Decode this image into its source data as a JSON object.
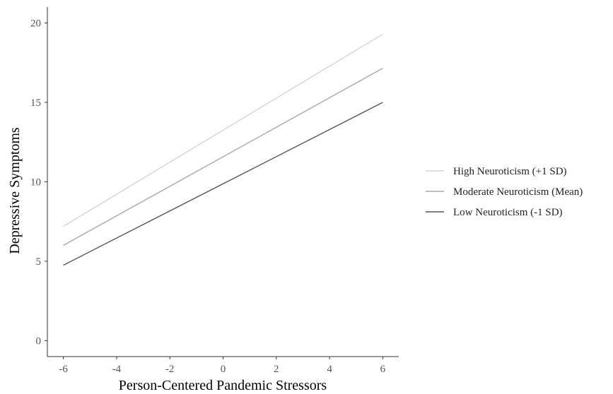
{
  "chart_data": {
    "type": "line",
    "title": "",
    "xlabel": "Person-Centered Pandemic Stressors",
    "ylabel": "Depressive Symptoms",
    "xlim": [
      -6.6,
      6.6
    ],
    "ylim": [
      -1.0,
      21.0
    ],
    "xticks": [
      -6,
      -4,
      -2,
      0,
      2,
      4,
      6
    ],
    "xtick_labels": [
      "-6",
      "-4",
      "-2",
      "0",
      "2",
      "4",
      "6"
    ],
    "yticks": [
      0,
      5,
      10,
      15,
      20
    ],
    "ytick_labels": [
      "0",
      "5",
      "10",
      "15",
      "20"
    ],
    "grid": false,
    "legend_position": "right",
    "series": [
      {
        "name": "High Neuroticism (+1 SD)",
        "color": "#d4d4d4",
        "x": [
          -6,
          6
        ],
        "y": [
          7.2,
          19.3
        ]
      },
      {
        "name": "Moderate Neuroticism (Mean)",
        "color": "#a8a8a8",
        "x": [
          -6,
          6
        ],
        "y": [
          6.0,
          17.15
        ]
      },
      {
        "name": "Low Neuroticism (-1 SD)",
        "color": "#555555",
        "x": [
          -6,
          6
        ],
        "y": [
          4.75,
          15.0
        ]
      }
    ]
  }
}
